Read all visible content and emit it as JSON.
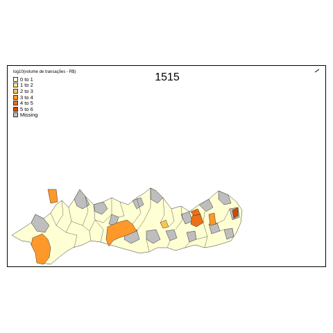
{
  "map": {
    "title": "1515",
    "legend": {
      "title": "log10(volume de transações - R$)",
      "items": [
        {
          "label": "0 to 1",
          "color": "#FFFFD4"
        },
        {
          "label": "1 to 2",
          "color": "#FEE391"
        },
        {
          "label": "2 to 3",
          "color": "#FEC44F"
        },
        {
          "label": "3 to 4",
          "color": "#FE9929"
        },
        {
          "label": "4 to 5",
          "color": "#EC7014"
        },
        {
          "label": "5 to 6",
          "color": "#CC4C02"
        },
        {
          "label": "Missing",
          "color": "#BEBEBE"
        }
      ]
    },
    "north_arrow_icon": "north-arrow-icon"
  }
}
